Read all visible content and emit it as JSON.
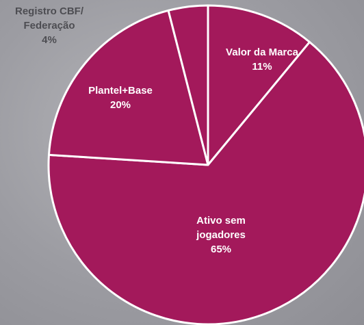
{
  "chart_data": {
    "type": "pie",
    "categories": [
      "Valor da Marca",
      "Ativo sem jogadores",
      "Plantel+Base",
      "Registro CBF/ Federação"
    ],
    "values": [
      11,
      65,
      20,
      4
    ],
    "value_labels": [
      "11%",
      "65%",
      "20%",
      "4%"
    ],
    "color": "#a3195b"
  }
}
